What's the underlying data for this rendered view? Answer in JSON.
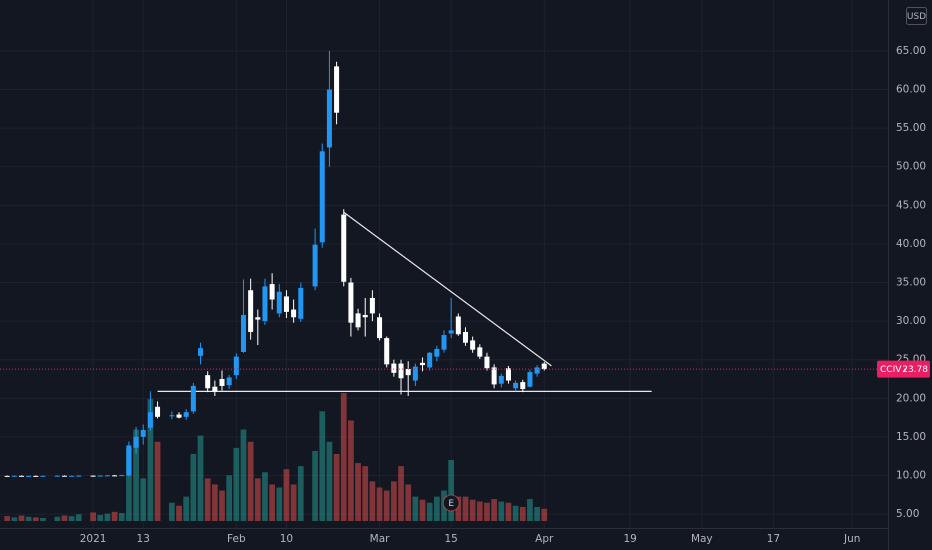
{
  "chart_data": {
    "type": "candlestick",
    "symbol": "CCIV",
    "currency": "USD",
    "x": [
      "2020-12-17",
      "2020-12-18",
      "2020-12-21",
      "2020-12-22",
      "2020-12-23",
      "2020-12-24",
      "2020-12-28",
      "2020-12-29",
      "2020-12-30",
      "2020-12-31",
      "2021-01-04",
      "2021-01-05",
      "2021-01-06",
      "2021-01-07",
      "2021-01-08",
      "2021-01-11",
      "2021-01-12",
      "2021-01-13",
      "2021-01-14",
      "2021-01-15",
      "2021-01-19",
      "2021-01-20",
      "2021-01-21",
      "2021-01-22",
      "2021-01-25",
      "2021-01-26",
      "2021-01-27",
      "2021-01-28",
      "2021-01-29",
      "2021-02-01",
      "2021-02-02",
      "2021-02-03",
      "2021-02-04",
      "2021-02-05",
      "2021-02-08",
      "2021-02-09",
      "2021-02-10",
      "2021-02-11",
      "2021-02-12",
      "2021-02-16",
      "2021-02-17",
      "2021-02-18",
      "2021-02-19",
      "2021-02-22",
      "2021-02-23",
      "2021-02-24",
      "2021-02-25",
      "2021-02-26",
      "2021-03-01",
      "2021-03-02",
      "2021-03-03",
      "2021-03-04",
      "2021-03-05",
      "2021-03-08",
      "2021-03-09",
      "2021-03-10",
      "2021-03-11",
      "2021-03-12",
      "2021-03-15",
      "2021-03-16",
      "2021-03-17",
      "2021-03-18",
      "2021-03-19",
      "2021-03-22",
      "2021-03-23",
      "2021-03-24",
      "2021-03-25",
      "2021-03-26",
      "2021-03-29",
      "2021-03-30",
      "2021-03-31",
      "2021-04-01"
    ],
    "open": [
      9.95,
      9.93,
      9.96,
      9.94,
      9.95,
      9.94,
      9.96,
      9.97,
      9.95,
      9.96,
      9.98,
      9.96,
      9.99,
      10.02,
      10.0,
      10.0,
      13.6,
      15.0,
      16.2,
      18.9,
      17.7,
      17.9,
      17.6,
      18.3,
      25.5,
      23.0,
      21.5,
      22.5,
      21.7,
      23.0,
      26.0,
      34.0,
      30.5,
      30.0,
      34.8,
      31.0,
      33.2,
      31.5,
      30.3,
      34.5,
      40.2,
      52.5,
      63.0,
      43.8,
      35.0,
      31.0,
      30.8,
      33.0,
      30.5,
      27.8,
      24.5,
      24.5,
      23.8,
      22.3,
      24.6,
      24.0,
      25.4,
      26.3,
      28.4,
      30.6,
      28.6,
      27.5,
      26.6,
      25.4,
      24.0,
      21.9,
      23.9,
      21.3,
      22.1,
      21.5,
      23.2,
      24.5
    ],
    "high": [
      10.0,
      10.0,
      10.01,
      9.99,
      10.0,
      10.0,
      10.02,
      10.02,
      10.0,
      10.03,
      10.03,
      10.04,
      10.07,
      10.07,
      10.1,
      14.4,
      16.3,
      16.6,
      20.9,
      19.6,
      18.3,
      18.2,
      18.6,
      22.0,
      27.2,
      23.5,
      22.3,
      23.6,
      23.0,
      25.8,
      35.4,
      35.5,
      31.5,
      35.5,
      36.2,
      34.8,
      34.0,
      32.8,
      35.0,
      42.0,
      53.0,
      65.0,
      63.6,
      44.5,
      35.6,
      31.6,
      33.0,
      34.0,
      31.0,
      28.0,
      25.0,
      25.0,
      24.8,
      24.5,
      25.3,
      26.0,
      26.8,
      28.8,
      33.0,
      31.0,
      29.2,
      28.0,
      27.0,
      25.9,
      24.4,
      23.2,
      24.2,
      22.3,
      22.4,
      23.7,
      24.3,
      24.7
    ],
    "low": [
      9.88,
      9.88,
      9.9,
      9.89,
      9.89,
      9.89,
      9.91,
      9.9,
      9.9,
      9.91,
      9.91,
      9.91,
      9.94,
      9.95,
      9.95,
      9.9,
      12.8,
      14.0,
      15.8,
      17.4,
      17.3,
      17.4,
      17.2,
      18.0,
      24.4,
      20.8,
      20.3,
      21.0,
      21.2,
      22.5,
      25.9,
      27.6,
      26.9,
      29.5,
      31.5,
      30.5,
      30.4,
      29.8,
      29.9,
      34.0,
      39.5,
      50.0,
      55.5,
      34.5,
      28.0,
      28.8,
      28.0,
      30.0,
      27.5,
      24.0,
      22.8,
      20.5,
      20.3,
      21.6,
      23.5,
      23.6,
      24.8,
      25.9,
      27.8,
      28.1,
      26.8,
      25.9,
      25.1,
      23.6,
      21.3,
      21.4,
      21.9,
      20.9,
      20.8,
      21.4,
      22.8,
      23.6
    ],
    "close": [
      9.93,
      9.96,
      9.94,
      9.95,
      9.94,
      9.96,
      9.97,
      9.95,
      9.96,
      9.98,
      9.96,
      9.99,
      10.02,
      10.0,
      10.05,
      13.9,
      15.0,
      15.9,
      18.2,
      17.6,
      17.8,
      17.5,
      18.2,
      21.6,
      26.5,
      21.3,
      20.9,
      21.6,
      22.7,
      25.4,
      30.8,
      28.6,
      30.2,
      34.5,
      32.8,
      33.8,
      31.2,
      30.5,
      34.3,
      39.9,
      52.0,
      60.0,
      57.0,
      35.1,
      29.8,
      29.2,
      30.5,
      31.0,
      27.8,
      24.4,
      23.3,
      22.6,
      23.0,
      24.1,
      24.3,
      25.9,
      26.4,
      28.2,
      28.8,
      28.3,
      27.2,
      26.3,
      25.4,
      23.9,
      21.8,
      22.9,
      22.3,
      22.0,
      21.2,
      23.4,
      24.0,
      23.78
    ],
    "volume": [
      8,
      6,
      9,
      7,
      6,
      5,
      7,
      9,
      8,
      11,
      14,
      10,
      12,
      15,
      13,
      120,
      150,
      70,
      200,
      130,
      30,
      25,
      40,
      110,
      140,
      70,
      60,
      50,
      75,
      120,
      150,
      130,
      70,
      80,
      60,
      55,
      85,
      60,
      90,
      115,
      180,
      130,
      110,
      210,
      165,
      95,
      90,
      65,
      55,
      50,
      65,
      90,
      60,
      40,
      35,
      30,
      40,
      50,
      100,
      40,
      40,
      35,
      32,
      30,
      36,
      32,
      30,
      25,
      23,
      36,
      23,
      20
    ],
    "up_color": "#2196f3",
    "down_color": "#ffffff",
    "volume_up_color": "#26a69a",
    "volume_down_color": "#ef5350",
    "last_price_color": "#e91e63",
    "xlim": [
      "2020-12-16",
      "2021-06-08"
    ],
    "xticks": [
      {
        "value": "2021-01-04",
        "label": "2021"
      },
      {
        "value": "2021-01-13",
        "label": "13"
      },
      {
        "value": "2021-02-01",
        "label": "Feb"
      },
      {
        "value": "2021-02-10",
        "label": "10"
      },
      {
        "value": "2021-03-01",
        "label": "Mar"
      },
      {
        "value": "2021-03-15",
        "label": "15"
      },
      {
        "value": "2021-04-01",
        "label": "Apr"
      },
      {
        "value": "2021-04-19",
        "label": "19"
      },
      {
        "value": "2021-05-03",
        "label": "May"
      },
      {
        "value": "2021-05-17",
        "label": "17"
      },
      {
        "value": "2021-06-01",
        "label": "Jun"
      }
    ],
    "ylim": [
      3.2,
      71.6
    ],
    "yticks": [
      {
        "value": 5,
        "label": "5.00"
      },
      {
        "value": 10,
        "label": "10.00"
      },
      {
        "value": 15,
        "label": "15.00"
      },
      {
        "value": 20,
        "label": "20.00"
      },
      {
        "value": 25,
        "label": "25.00"
      },
      {
        "value": 30,
        "label": "30.00"
      },
      {
        "value": 35,
        "label": "35.00"
      },
      {
        "value": 40,
        "label": "40.00"
      },
      {
        "value": 45,
        "label": "45.00"
      },
      {
        "value": 50,
        "label": "50.00"
      },
      {
        "value": 55,
        "label": "55.00"
      },
      {
        "value": 60,
        "label": "60.00"
      },
      {
        "value": 65,
        "label": "65.00"
      }
    ],
    "grid": true,
    "drawings": [
      {
        "x": [
          "2021-02-22",
          "2021-04-02"
        ],
        "y": [
          44.1,
          24.2
        ],
        "color": "#ffffff"
      },
      {
        "x": [
          "2021-01-15",
          "2021-04-22"
        ],
        "y": [
          20.9,
          20.9
        ],
        "color": "#ffffff"
      }
    ],
    "events": [
      {
        "x": "2021-03-15",
        "label": "E"
      }
    ]
  }
}
